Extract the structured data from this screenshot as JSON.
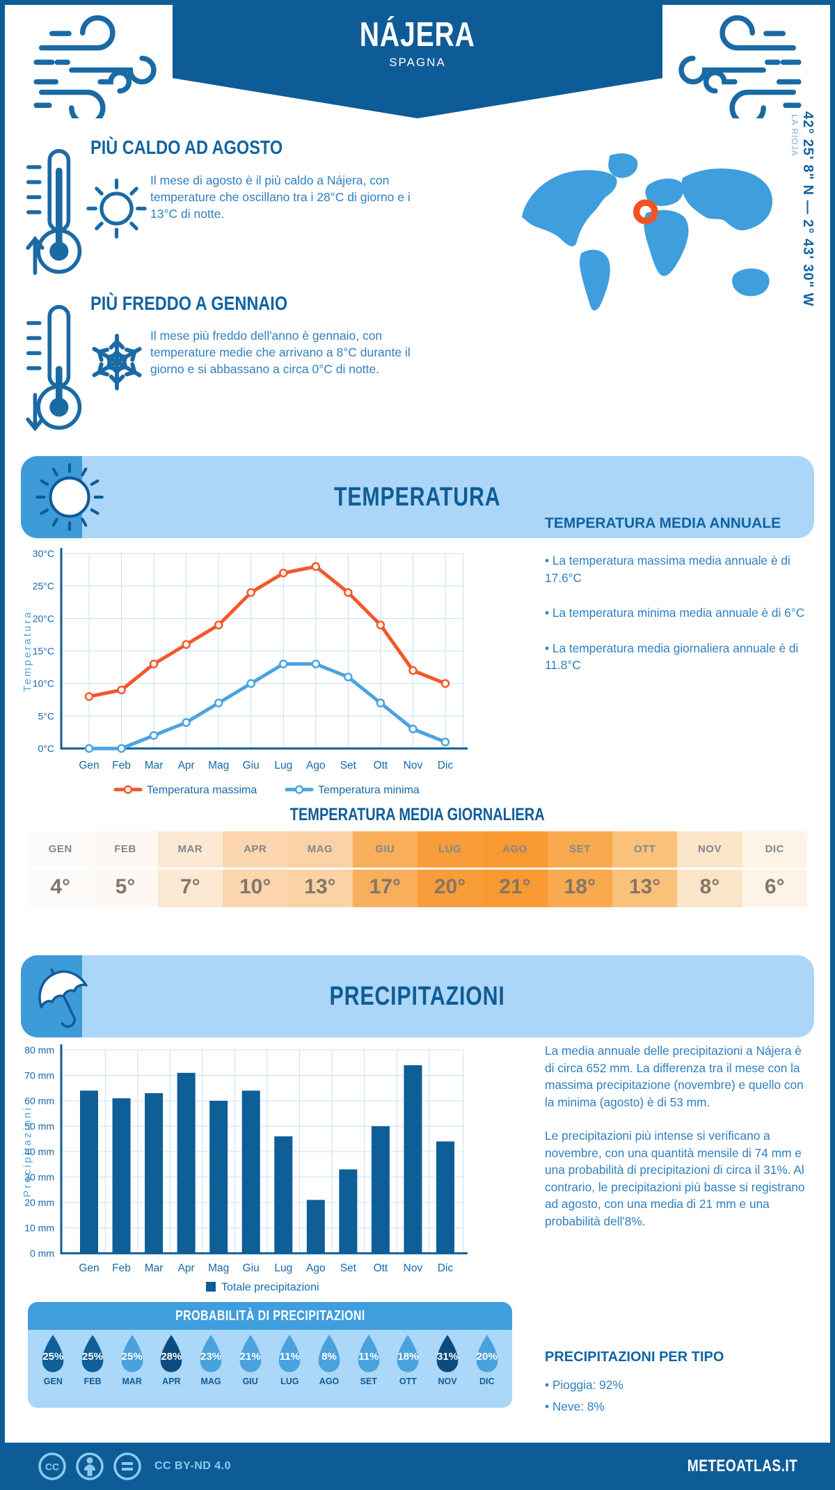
{
  "header": {
    "title": "NÁJERA",
    "subtitle": "SPAGNA"
  },
  "facts": [
    {
      "title": "PIÙ CALDO AD AGOSTO",
      "text": "Il mese di agosto è il più caldo a Nájera, con temperature che oscillano tra i 28°C di giorno e i 13°C di notte."
    },
    {
      "title": "PIÙ FREDDO A GENNAIO",
      "text": "Il mese più freddo dell'anno è gennaio, con temperature medie che arrivano a 8°C durante il giorno e si abbassano a circa 0°C di notte."
    }
  ],
  "map": {
    "coordinates": "42° 25' 8\" N — 2° 43' 30\" W",
    "region": "LA RIOJA",
    "marker_color": "#f4531f",
    "land_color": "#3f9edd"
  },
  "temperature_section": {
    "banner": "TEMPERATURA",
    "annual": {
      "heading": "TEMPERATURA MEDIA ANNUALE",
      "bullets": [
        "• La temperatura massima media annuale è di 17.6°C",
        "• La temperatura minima media annuale è di 6°C",
        "• La temperatura media giornaliera annuale è di 11.8°C"
      ]
    },
    "daily_table": {
      "title": "TEMPERATURA MEDIA GIORNALIERA",
      "months": [
        "GEN",
        "FEB",
        "MAR",
        "APR",
        "MAG",
        "GIU",
        "LUG",
        "AGO",
        "SET",
        "OTT",
        "NOV",
        "DIC"
      ],
      "values": [
        "4°",
        "5°",
        "7°",
        "10°",
        "13°",
        "17°",
        "20°",
        "21°",
        "18°",
        "13°",
        "8°",
        "6°"
      ],
      "cell_colors": [
        "#fdfbf9",
        "#fdf8f4",
        "#fce9d3",
        "#fbd6ae",
        "#fbd2a6",
        "#f9ae5c",
        "#f89d39",
        "#f89a31",
        "#f9a94e",
        "#f9c179",
        "#fbe5c9",
        "#fdf3e6"
      ]
    }
  },
  "precipitation_section": {
    "banner": "PRECIPITAZIONI",
    "summary": [
      "La media annuale delle precipitazioni a Nájera è di circa 652 mm. La differenza tra il mese con la massima precipitazione (novembre) e quello con la minima (agosto) è di 53 mm.",
      "Le precipitazioni più intense si verificano a novembre, con una quantità mensile di 74 mm e una probabilità di precipitazioni di circa il 31%. Al contrario, le precipitazioni più basse si registrano ad agosto, con una media di 21 mm e una probabilità dell'8%."
    ],
    "probability": {
      "title": "PROBABILITÀ DI PRECIPITAZIONI",
      "months": [
        "GEN",
        "FEB",
        "MAR",
        "APR",
        "MAG",
        "GIU",
        "LUG",
        "AGO",
        "SET",
        "OTT",
        "NOV",
        "DIC"
      ],
      "values": [
        "25%",
        "25%",
        "25%",
        "28%",
        "23%",
        "21%",
        "11%",
        "8%",
        "11%",
        "18%",
        "31%",
        "20%"
      ],
      "colors": [
        "#0f5f99",
        "#0f5f99",
        "#4aa2dd",
        "#0b4c80",
        "#4aa2dd",
        "#4aa2dd",
        "#4aa2dd",
        "#4aa2dd",
        "#4aa2dd",
        "#4aa2dd",
        "#0b4c80",
        "#4aa2dd"
      ]
    },
    "by_type": {
      "heading": "PRECIPITAZIONI PER TIPO",
      "bullets": [
        "• Pioggia: 92%",
        "• Neve: 8%"
      ]
    }
  },
  "footer": {
    "license": "CC BY-ND 4.0",
    "brand": "METEOATLAS.IT"
  },
  "colors": {
    "primary": "#0e5c97",
    "accent_light": "#abd6f7",
    "icon_square": "#3e9bd9",
    "body_text": "#2e7fc0",
    "max_line": "#f4572b",
    "min_line": "#4ba3e0"
  },
  "chart_data": [
    {
      "type": "line",
      "categories": [
        "Gen",
        "Feb",
        "Mar",
        "Apr",
        "Mag",
        "Giu",
        "Lug",
        "Ago",
        "Set",
        "Ott",
        "Nov",
        "Dic"
      ],
      "series": [
        {
          "name": "Temperatura massima",
          "color": "#f4572b",
          "values": [
            8,
            9,
            13,
            16,
            19,
            24,
            27,
            28,
            24,
            19,
            12,
            10
          ]
        },
        {
          "name": "Temperatura minima",
          "color": "#4ba3e0",
          "values": [
            0,
            0,
            2,
            4,
            7,
            10,
            13,
            13,
            11,
            7,
            3,
            1
          ]
        }
      ],
      "ylabel": "Temperatura",
      "xlabel": "",
      "ylim": [
        0,
        30
      ],
      "ytick_step": 5,
      "ytick_suffix": "°C",
      "grid": true,
      "legend_position": "bottom"
    },
    {
      "type": "bar",
      "categories": [
        "Gen",
        "Feb",
        "Mar",
        "Apr",
        "Mag",
        "Giu",
        "Lug",
        "Ago",
        "Set",
        "Ott",
        "Nov",
        "Dic"
      ],
      "series": [
        {
          "name": "Totale precipitazioni",
          "color": "#0e5e97",
          "values": [
            64,
            61,
            63,
            71,
            60,
            64,
            46,
            21,
            33,
            50,
            74,
            44
          ]
        }
      ],
      "ylabel": "Precipitazioni",
      "xlabel": "",
      "ylim": [
        0,
        80
      ],
      "ytick_step": 10,
      "ytick_suffix": " mm",
      "grid": true,
      "legend_position": "bottom"
    }
  ]
}
